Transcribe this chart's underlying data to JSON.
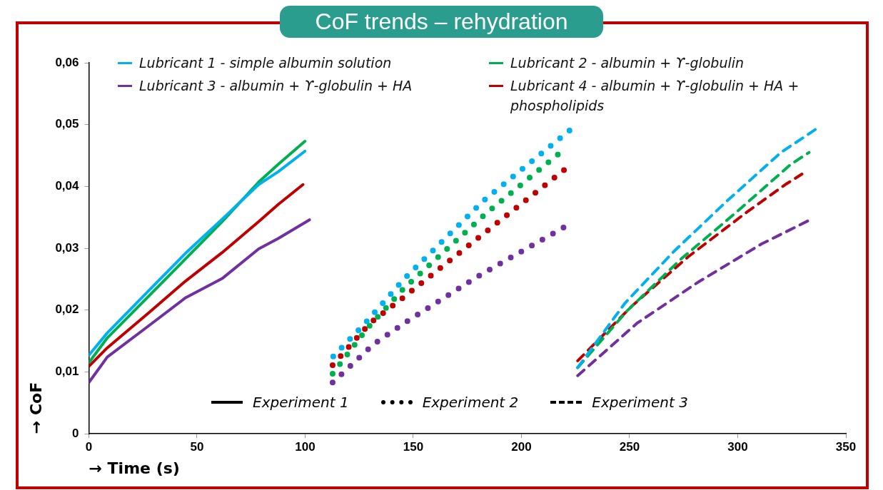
{
  "chart_data": {
    "type": "line",
    "title": "CoF trends – rehydration",
    "xlabel": "→ Time (s)",
    "ylabel": "→ CoF",
    "xlim": [
      0,
      350
    ],
    "xticks": [
      0,
      50,
      100,
      150,
      200,
      250,
      300,
      350
    ],
    "ylim": [
      0,
      0.06
    ],
    "yticks": [
      0,
      {
        "value": 0.01,
        "label": "0,01"
      },
      {
        "value": 0.02,
        "label": "0,02"
      },
      {
        "value": 0.03,
        "label": "0,03"
      },
      {
        "value": 0.04,
        "label": "0,04"
      },
      {
        "value": 0.05,
        "label": "0,05"
      },
      {
        "value": 0.06,
        "label": "0,06"
      }
    ],
    "grid": false,
    "legend": "top",
    "marker": "none",
    "annotations": [
      "Experiment 1",
      "Experiment 2",
      "Experiment 3"
    ],
    "series": [
      {
        "name": "Lubricant 1 - simple albumin solution",
        "color": "#00b0f0",
        "line_style": "solid",
        "x": [
          0,
          8.5,
          27.8,
          44.7,
          61.6,
          78.5,
          87.6,
          99.9
        ],
        "values": [
          0.0127,
          0.0163,
          0.0232,
          0.0292,
          0.0347,
          0.0403,
          0.0424,
          0.0457
        ]
      },
      {
        "name": "Lubricant 2 - albumin + ϒ-globulin",
        "color": "#00b050",
        "line_style": "solid",
        "x": [
          0,
          8.5,
          27.8,
          44.7,
          61.6,
          78.5,
          87.6,
          99.9
        ],
        "values": [
          0.0115,
          0.0155,
          0.0223,
          0.0283,
          0.0343,
          0.0407,
          0.0436,
          0.0473
        ]
      },
      {
        "name": "Lubricant 3 - albumin + ϒ-globulin + HA",
        "color": "#7030a0",
        "line_style": "solid",
        "x": [
          0,
          8.5,
          27.8,
          44.7,
          61.6,
          78.5,
          87.6,
          102
        ],
        "values": [
          0.0083,
          0.0124,
          0.0175,
          0.022,
          0.0251,
          0.0299,
          0.0316,
          0.0346
        ]
      },
      {
        "name": "Lubricant 4 - albumin + ϒ-globulin + HA + phospholipids",
        "color": "#c00000",
        "line_style": "solid",
        "x": [
          0,
          8.5,
          27.8,
          44.7,
          61.6,
          78.5,
          87.6,
          99
        ],
        "values": [
          0.0109,
          0.0139,
          0.0196,
          0.0247,
          0.0293,
          0.0343,
          0.0371,
          0.0403
        ]
      },
      {
        "color": "#00b0f0",
        "line_style": "dotted",
        "x": [
          113,
          128.3,
          145.6,
          182.5,
          222.4
        ],
        "values": [
          0.0125,
          0.0181,
          0.025,
          0.0377,
          0.0491
        ]
      },
      {
        "color": "#00b050",
        "line_style": "dotted",
        "x": [
          112.7,
          128.3,
          145.6,
          183.5,
          217.7
        ],
        "values": [
          0.0097,
          0.0169,
          0.0235,
          0.0356,
          0.0454
        ]
      },
      {
        "color": "#7030a0",
        "line_style": "dotted",
        "x": [
          112.7,
          131.7,
          148,
          181,
          220.7
        ],
        "values": [
          0.0083,
          0.0145,
          0.0184,
          0.0257,
          0.0336
        ]
      },
      {
        "color": "#c00000",
        "line_style": "dotted",
        "x": [
          112.7,
          130,
          145.6,
          180.8,
          221.7
        ],
        "values": [
          0.0111,
          0.0179,
          0.0221,
          0.0319,
          0.0432
        ]
      },
      {
        "color": "#00b0f0",
        "line_style": "dashed",
        "x": [
          226,
          247.8,
          270.5,
          295.2,
          320,
          338
        ],
        "values": [
          0.0107,
          0.0211,
          0.0295,
          0.0377,
          0.0455,
          0.0497
        ]
      },
      {
        "color": "#00b050",
        "line_style": "dashed",
        "x": [
          226,
          248.9,
          273.9,
          299.6,
          324.6,
          333
        ],
        "values": [
          0.0107,
          0.0199,
          0.0283,
          0.0359,
          0.0436,
          0.0455
        ]
      },
      {
        "color": "#7030a0",
        "line_style": "dashed",
        "x": [
          226,
          253.5,
          281.6,
          311,
          334
        ],
        "values": [
          0.0094,
          0.0179,
          0.0245,
          0.0307,
          0.0347
        ]
      },
      {
        "color": "#c00000",
        "line_style": "dashed",
        "x": [
          226,
          251.2,
          277,
          304,
          322,
          329.7
        ],
        "values": [
          0.0118,
          0.0207,
          0.0286,
          0.0358,
          0.0403,
          0.042
        ]
      }
    ]
  }
}
